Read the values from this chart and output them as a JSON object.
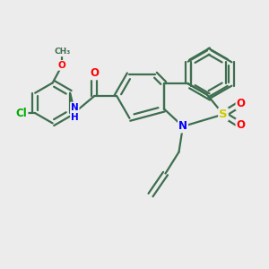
{
  "bg_color": "#ececec",
  "bond_color": "#3d6e4e",
  "bond_width": 1.6,
  "atom_colors": {
    "O": "#ff0000",
    "N": "#0000ff",
    "S": "#cccc00",
    "Cl": "#00aa00",
    "C": "#3d6e4e",
    "H": "#3d6e4e"
  },
  "font_size": 8.5,
  "fig_size": [
    3.0,
    3.0
  ],
  "dpi": 100
}
